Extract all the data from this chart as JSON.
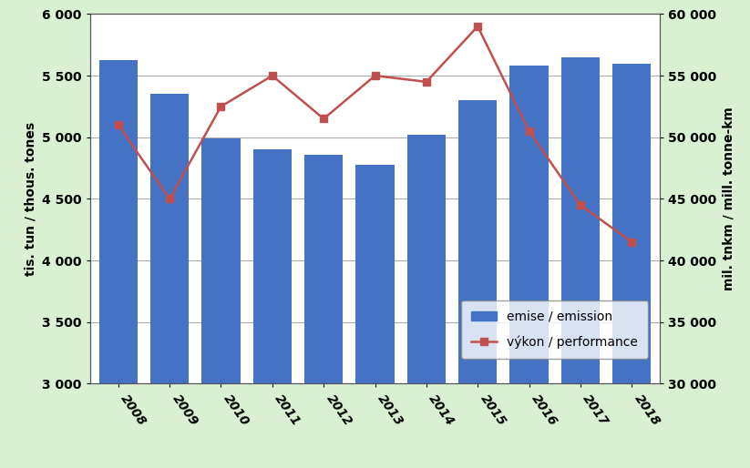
{
  "years": [
    2008,
    2009,
    2010,
    2011,
    2012,
    2013,
    2014,
    2015,
    2016,
    2017,
    2018
  ],
  "emissions": [
    5630,
    5350,
    4990,
    4900,
    4860,
    4780,
    5020,
    5300,
    5580,
    5650,
    5600
  ],
  "performance": [
    51000,
    45000,
    52500,
    55000,
    51500,
    55000,
    54500,
    59000,
    50500,
    44500,
    41500
  ],
  "bar_color": "#4472C4",
  "line_color": "#C0504D",
  "background_outer": "#d9f0d3",
  "background_plot": "#ffffff",
  "ylabel_left": "tis. tun / thous. tones",
  "ylabel_right": "mil. tnkm / mill. tonne-km",
  "ylim_left": [
    3000,
    6000
  ],
  "ylim_right": [
    30000,
    60000
  ],
  "yticks_left": [
    3000,
    3500,
    4000,
    4500,
    5000,
    5500,
    6000
  ],
  "yticks_right": [
    30000,
    35000,
    40000,
    45000,
    50000,
    55000,
    60000
  ],
  "legend_emission": "emise / emission",
  "legend_performance": "výkon / performance",
  "grid_color": "#aaaaaa",
  "line_width": 1.8,
  "marker": "s",
  "marker_size": 6
}
